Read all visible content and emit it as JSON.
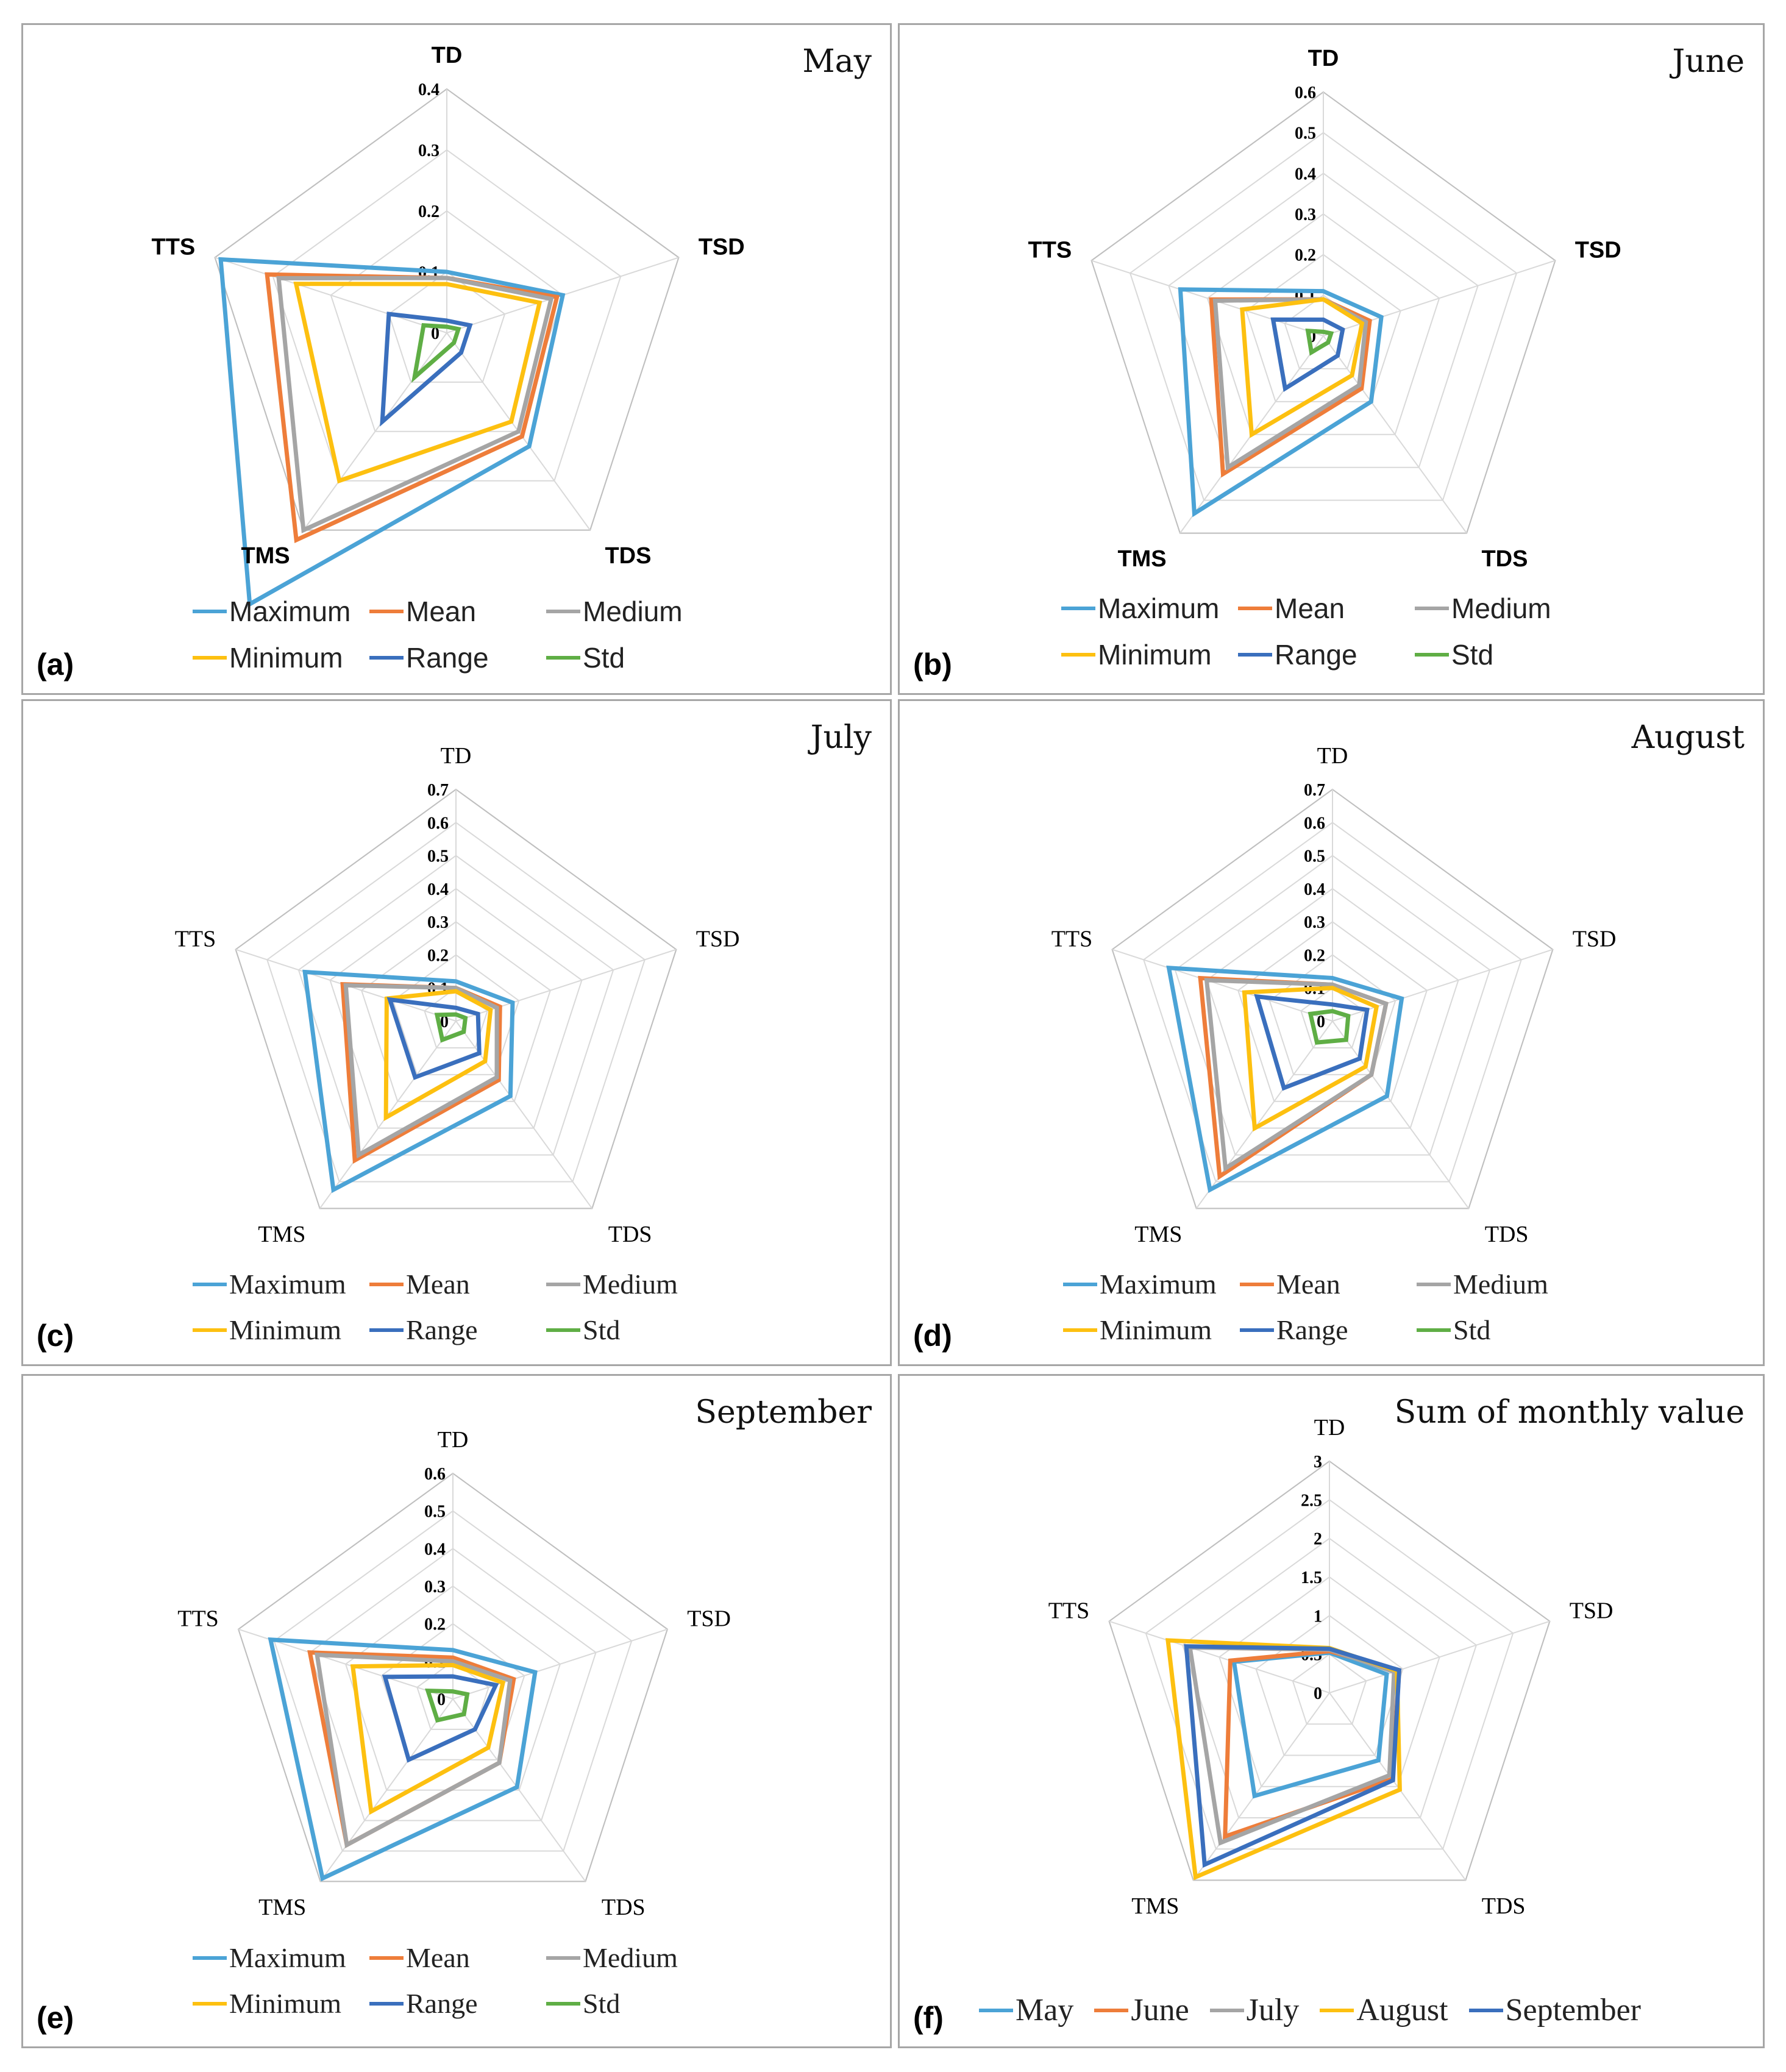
{
  "axes": [
    "TD",
    "TSD",
    "TDS",
    "TMS",
    "TTS"
  ],
  "colors": {
    "Maximum": "#4ba3d6",
    "Mean": "#ee7d3a",
    "Medium": "#a5a5a5",
    "Minimum": "#fdc010",
    "Range": "#3a6fbd",
    "Std": "#5fae45",
    "May": "#4ba3d6",
    "June": "#ee7d3a",
    "July": "#a5a5a5",
    "August": "#fdc010",
    "September": "#3a6fbd"
  },
  "legend_stats": [
    "Maximum",
    "Mean",
    "Medium",
    "Minimum",
    "Range",
    "Std"
  ],
  "legend_months": [
    "May",
    "June",
    "July",
    "August",
    "September"
  ],
  "chart_data": [
    {
      "type": "radar",
      "panel_label": "(a)",
      "title": "May",
      "axes": [
        "TD",
        "TSD",
        "TDS",
        "TMS",
        "TTS"
      ],
      "ylim": [
        0,
        0.4
      ],
      "ticks": [
        "0",
        "0.1",
        "0.2",
        "0.3",
        "0.4"
      ],
      "series": [
        {
          "name": "Maximum",
          "values": [
            0.1,
            0.2,
            0.23,
            0.55,
            0.39
          ]
        },
        {
          "name": "Mean",
          "values": [
            0.09,
            0.19,
            0.21,
            0.42,
            0.31
          ]
        },
        {
          "name": "Medium",
          "values": [
            0.09,
            0.18,
            0.2,
            0.4,
            0.29
          ]
        },
        {
          "name": "Minimum",
          "values": [
            0.08,
            0.16,
            0.18,
            0.3,
            0.26
          ]
        },
        {
          "name": "Range",
          "values": [
            0.02,
            0.04,
            0.04,
            0.18,
            0.1
          ]
        },
        {
          "name": "Std",
          "values": [
            0.01,
            0.02,
            0.02,
            0.09,
            0.04
          ]
        }
      ]
    },
    {
      "type": "radar",
      "panel_label": "(b)",
      "title": "June",
      "axes": [
        "TD",
        "TSD",
        "TDS",
        "TMS",
        "TTS"
      ],
      "ylim": [
        0,
        0.6
      ],
      "ticks": [
        "0",
        "0.1",
        "0.2",
        "0.3",
        "0.4",
        "0.5",
        "0.6"
      ],
      "series": [
        {
          "name": "Maximum",
          "values": [
            0.11,
            0.15,
            0.2,
            0.54,
            0.37
          ]
        },
        {
          "name": "Mean",
          "values": [
            0.09,
            0.12,
            0.16,
            0.42,
            0.29
          ]
        },
        {
          "name": "Medium",
          "values": [
            0.09,
            0.11,
            0.15,
            0.4,
            0.28
          ]
        },
        {
          "name": "Minimum",
          "values": [
            0.09,
            0.1,
            0.12,
            0.3,
            0.21
          ]
        },
        {
          "name": "Range",
          "values": [
            0.04,
            0.05,
            0.06,
            0.16,
            0.13
          ]
        },
        {
          "name": "Std",
          "values": [
            0.01,
            0.02,
            0.02,
            0.05,
            0.04
          ]
        }
      ]
    },
    {
      "type": "radar",
      "panel_label": "(c)",
      "title": "July",
      "axes": [
        "TD",
        "TSD",
        "TDS",
        "TMS",
        "TTS"
      ],
      "ylim": [
        0,
        0.7
      ],
      "ticks": [
        "0",
        "0.1",
        "0.2",
        "0.3",
        "0.4",
        "0.5",
        "0.6",
        "0.7"
      ],
      "series": [
        {
          "name": "Maximum",
          "values": [
            0.12,
            0.18,
            0.28,
            0.63,
            0.48
          ]
        },
        {
          "name": "Mean",
          "values": [
            0.1,
            0.14,
            0.22,
            0.52,
            0.36
          ]
        },
        {
          "name": "Medium",
          "values": [
            0.1,
            0.13,
            0.21,
            0.5,
            0.35
          ]
        },
        {
          "name": "Minimum",
          "values": [
            0.09,
            0.11,
            0.15,
            0.36,
            0.22
          ]
        },
        {
          "name": "Range",
          "values": [
            0.04,
            0.07,
            0.12,
            0.21,
            0.21
          ]
        },
        {
          "name": "Std",
          "values": [
            0.02,
            0.03,
            0.04,
            0.07,
            0.06
          ]
        }
      ]
    },
    {
      "type": "radar",
      "panel_label": "(d)",
      "title": "August",
      "axes": [
        "TD",
        "TSD",
        "TDS",
        "TMS",
        "TTS"
      ],
      "ylim": [
        0,
        0.7
      ],
      "ticks": [
        "0",
        "0.1",
        "0.2",
        "0.3",
        "0.4",
        "0.5",
        "0.6",
        "0.7"
      ],
      "series": [
        {
          "name": "Maximum",
          "values": [
            0.13,
            0.22,
            0.28,
            0.63,
            0.52
          ]
        },
        {
          "name": "Mean",
          "values": [
            0.11,
            0.17,
            0.2,
            0.58,
            0.42
          ]
        },
        {
          "name": "Medium",
          "values": [
            0.11,
            0.17,
            0.2,
            0.55,
            0.4
          ]
        },
        {
          "name": "Minimum",
          "values": [
            0.1,
            0.14,
            0.17,
            0.4,
            0.28
          ]
        },
        {
          "name": "Range",
          "values": [
            0.05,
            0.11,
            0.14,
            0.25,
            0.24
          ]
        },
        {
          "name": "Std",
          "values": [
            0.03,
            0.05,
            0.07,
            0.08,
            0.07
          ]
        }
      ]
    },
    {
      "type": "radar",
      "panel_label": "(e)",
      "title": "September",
      "axes": [
        "TD",
        "TSD",
        "TDS",
        "TMS",
        "TTS"
      ],
      "ylim": [
        0,
        0.6
      ],
      "ticks": [
        "0",
        "0.1",
        "0.2",
        "0.3",
        "0.4",
        "0.5",
        "0.6"
      ],
      "series": [
        {
          "name": "Maximum",
          "values": [
            0.13,
            0.23,
            0.29,
            0.59,
            0.51
          ]
        },
        {
          "name": "Mean",
          "values": [
            0.11,
            0.17,
            0.21,
            0.48,
            0.4
          ]
        },
        {
          "name": "Medium",
          "values": [
            0.1,
            0.16,
            0.21,
            0.48,
            0.38
          ]
        },
        {
          "name": "Minimum",
          "values": [
            0.09,
            0.14,
            0.16,
            0.37,
            0.28
          ]
        },
        {
          "name": "Range",
          "values": [
            0.06,
            0.12,
            0.1,
            0.2,
            0.19
          ]
        },
        {
          "name": "Std",
          "values": [
            0.02,
            0.04,
            0.05,
            0.07,
            0.07
          ]
        }
      ]
    },
    {
      "type": "radar",
      "panel_label": "(f)",
      "title": "Sum of monthly value",
      "axes": [
        "TD",
        "TSD",
        "TDS",
        "TMS",
        "TTS"
      ],
      "ylim": [
        0,
        3
      ],
      "ticks": [
        "0",
        "0.5",
        "1",
        "1.5",
        "2",
        "2.5",
        "3"
      ],
      "series": [
        {
          "name": "May",
          "values": [
            0.52,
            0.78,
            1.08,
            1.65,
            1.3
          ]
        },
        {
          "name": "June",
          "values": [
            0.54,
            0.95,
            1.38,
            2.3,
            1.35
          ]
        },
        {
          "name": "July",
          "values": [
            0.56,
            0.88,
            1.32,
            2.4,
            1.9
          ]
        },
        {
          "name": "August",
          "values": [
            0.58,
            0.92,
            1.55,
            2.95,
            2.2
          ]
        },
        {
          "name": "September",
          "values": [
            0.57,
            0.95,
            1.4,
            2.75,
            1.95
          ]
        }
      ]
    }
  ]
}
